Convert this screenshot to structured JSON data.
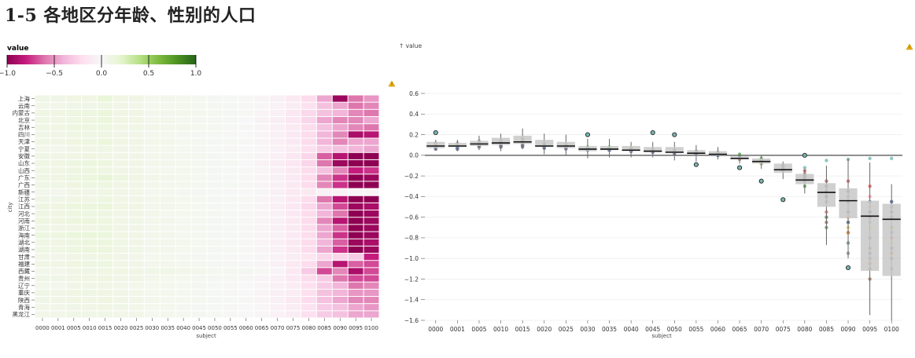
{
  "page": {
    "title": "1-5 各地区分年龄、性别的人口"
  },
  "legend": {
    "title": "value",
    "ticks": [
      "−1.0",
      "−0.5",
      "0.0",
      "0.5",
      "1.0"
    ],
    "colors": [
      "#8e0152",
      "#c51b7d",
      "#de77ae",
      "#f1b6da",
      "#fde0ef",
      "#f7f7f7",
      "#e6f5d0",
      "#b8e186",
      "#7fbc41",
      "#4d9221",
      "#276419"
    ]
  },
  "warning_icon": "warning-icon",
  "heatmap": {
    "xlabel": "subject",
    "ylabel": "city",
    "cities": [
      "上海",
      "云南",
      "内蒙古",
      "北京",
      "吉林",
      "四川",
      "天津",
      "宁夏",
      "安徽",
      "山东",
      "山西",
      "广东",
      "广西",
      "新疆",
      "江苏",
      "江西",
      "河北",
      "河南",
      "浙江",
      "海南",
      "湖北",
      "湖南",
      "甘肃",
      "福建",
      "西藏",
      "贵州",
      "辽宁",
      "重庆",
      "陕西",
      "青海",
      "黑龙江"
    ],
    "subjects": [
      "0000",
      "0001",
      "0005",
      "0010",
      "0015",
      "0020",
      "0025",
      "0030",
      "0035",
      "0040",
      "0045",
      "0050",
      "0055",
      "0060",
      "0065",
      "0070",
      "0075",
      "0080",
      "0085",
      "0090",
      "0095",
      "0100"
    ]
  },
  "box": {
    "ylabel": "↑ value",
    "xlabel": "subject",
    "yticks": [
      "0.6",
      "0.4",
      "0.2",
      "0.0",
      "−0.2",
      "−0.4",
      "−0.6",
      "−0.8",
      "−1.0",
      "−1.2",
      "−1.4",
      "−1.6"
    ],
    "xticks": [
      "0000",
      "0001",
      "0005",
      "0010",
      "0015",
      "0020",
      "0025",
      "0030",
      "0035",
      "0040",
      "0045",
      "0050",
      "0055",
      "0060",
      "0065",
      "0070",
      "0075",
      "0080",
      "0085",
      "0090",
      "0095",
      "0100"
    ]
  },
  "chart_data": [
    {
      "type": "heatmap",
      "xlabel": "subject",
      "ylabel": "city",
      "color_domain": [
        -1,
        1
      ],
      "x": [
        "0000",
        "0001",
        "0005",
        "0010",
        "0015",
        "0020",
        "0025",
        "0030",
        "0035",
        "0040",
        "0045",
        "0050",
        "0055",
        "0060",
        "0065",
        "0070",
        "0075",
        "0080",
        "0085",
        "0090",
        "0095",
        "0100"
      ],
      "y": [
        "上海",
        "云南",
        "内蒙古",
        "北京",
        "吉林",
        "四川",
        "天津",
        "宁夏",
        "安徽",
        "山东",
        "山西",
        "广东",
        "广西",
        "新疆",
        "江苏",
        "江西",
        "河北",
        "河南",
        "浙江",
        "海南",
        "湖北",
        "湖南",
        "甘肃",
        "福建",
        "西藏",
        "贵州",
        "辽宁",
        "重庆",
        "陕西",
        "青海",
        "黑龙江"
      ],
      "values": [
        [
          0.08,
          0.08,
          0.1,
          0.1,
          0.15,
          0.1,
          0.09,
          0.05,
          0.06,
          0.05,
          0.04,
          0.03,
          0.02,
          0.01,
          -0.03,
          -0.06,
          -0.12,
          -0.22,
          -0.45,
          -0.95,
          -0.6,
          -0.5
        ],
        [
          0.07,
          0.07,
          0.08,
          0.08,
          0.1,
          0.08,
          0.07,
          0.05,
          0.05,
          0.05,
          0.04,
          0.03,
          0.02,
          0.01,
          -0.02,
          -0.05,
          -0.1,
          -0.18,
          -0.35,
          -0.45,
          -0.6,
          -0.55
        ],
        [
          0.1,
          0.1,
          0.12,
          0.12,
          0.14,
          0.1,
          0.09,
          0.06,
          0.06,
          0.06,
          0.05,
          0.04,
          0.03,
          0.01,
          -0.03,
          -0.06,
          -0.14,
          -0.24,
          -0.35,
          -0.4,
          -0.55,
          -0.6
        ],
        [
          0.09,
          0.09,
          0.1,
          0.11,
          0.14,
          0.1,
          0.09,
          0.06,
          0.06,
          0.05,
          0.04,
          0.03,
          0.02,
          0.0,
          -0.04,
          -0.08,
          -0.15,
          -0.25,
          -0.45,
          -0.55,
          -0.55,
          -0.45
        ],
        [
          0.1,
          0.1,
          0.12,
          0.12,
          0.12,
          0.09,
          0.09,
          0.07,
          0.06,
          0.06,
          0.05,
          0.04,
          0.02,
          0.01,
          -0.03,
          -0.07,
          -0.12,
          -0.22,
          -0.35,
          -0.45,
          -0.55,
          -0.6
        ],
        [
          0.08,
          0.08,
          0.1,
          0.1,
          0.1,
          0.08,
          0.07,
          0.05,
          0.05,
          0.04,
          0.03,
          0.02,
          0.01,
          0.0,
          -0.03,
          -0.06,
          -0.12,
          -0.22,
          -0.4,
          -0.55,
          -0.9,
          -0.85
        ],
        [
          0.09,
          0.09,
          0.11,
          0.11,
          0.14,
          0.1,
          0.09,
          0.06,
          0.06,
          0.05,
          0.04,
          0.03,
          0.02,
          0.01,
          -0.03,
          -0.07,
          -0.12,
          -0.22,
          -0.4,
          -0.55,
          -0.45,
          -0.45
        ],
        [
          0.06,
          0.06,
          0.08,
          0.08,
          0.1,
          0.08,
          0.07,
          0.05,
          0.05,
          0.04,
          0.03,
          0.02,
          0.01,
          0.0,
          -0.02,
          -0.05,
          -0.1,
          -0.2,
          -0.3,
          -0.35,
          -0.4,
          -0.45
        ],
        [
          0.09,
          0.09,
          0.1,
          0.11,
          0.1,
          0.08,
          0.08,
          0.06,
          0.06,
          0.05,
          0.04,
          0.03,
          0.02,
          0.01,
          -0.03,
          -0.07,
          -0.14,
          -0.25,
          -0.65,
          -0.85,
          -1.2,
          -1.1
        ],
        [
          0.1,
          0.1,
          0.12,
          0.13,
          0.12,
          0.09,
          0.08,
          0.06,
          0.06,
          0.05,
          0.04,
          0.03,
          0.02,
          0.0,
          -0.04,
          -0.08,
          -0.15,
          -0.25,
          -0.6,
          -0.95,
          -1.1,
          -1.0
        ],
        [
          0.1,
          0.1,
          0.11,
          0.12,
          0.11,
          0.08,
          0.08,
          0.05,
          0.05,
          0.05,
          0.04,
          0.03,
          0.02,
          0.01,
          -0.03,
          -0.06,
          -0.12,
          -0.22,
          -0.35,
          -0.55,
          -0.8,
          -0.75
        ],
        [
          0.1,
          0.1,
          0.12,
          0.13,
          0.16,
          0.12,
          0.1,
          0.07,
          0.06,
          0.05,
          0.04,
          0.03,
          0.02,
          0.01,
          -0.03,
          -0.06,
          -0.12,
          -0.22,
          -0.55,
          -0.75,
          -1.05,
          -0.95
        ],
        [
          0.09,
          0.09,
          0.11,
          0.12,
          0.12,
          0.09,
          0.08,
          0.06,
          0.05,
          0.05,
          0.04,
          0.03,
          0.02,
          0.01,
          -0.03,
          -0.06,
          -0.12,
          -0.22,
          -0.55,
          -0.75,
          -1.1,
          -1.0
        ],
        [
          0.06,
          0.06,
          0.08,
          0.08,
          0.1,
          0.08,
          0.07,
          0.05,
          0.05,
          0.04,
          0.03,
          0.02,
          0.01,
          0.0,
          -0.02,
          -0.06,
          -0.12,
          -0.12,
          -0.05,
          -0.04,
          -0.03,
          -0.03
        ],
        [
          0.08,
          0.08,
          0.1,
          0.1,
          0.12,
          0.09,
          0.08,
          0.06,
          0.06,
          0.05,
          0.04,
          0.03,
          0.02,
          0.01,
          -0.03,
          -0.06,
          -0.12,
          -0.22,
          -0.6,
          -0.85,
          -1.1,
          -1.0
        ],
        [
          0.11,
          0.11,
          0.13,
          0.14,
          0.14,
          0.1,
          0.09,
          0.06,
          0.06,
          0.05,
          0.04,
          0.03,
          0.02,
          0.01,
          -0.03,
          -0.07,
          -0.13,
          -0.24,
          -0.45,
          -0.7,
          -0.95,
          -0.9
        ],
        [
          0.1,
          0.1,
          0.11,
          0.12,
          0.11,
          0.08,
          0.08,
          0.06,
          0.05,
          0.05,
          0.04,
          0.03,
          0.02,
          0.01,
          -0.03,
          -0.06,
          -0.12,
          -0.22,
          -0.4,
          -0.6,
          -1.0,
          -0.95
        ],
        [
          0.11,
          0.11,
          0.13,
          0.13,
          0.12,
          0.09,
          0.08,
          0.06,
          0.06,
          0.05,
          0.04,
          0.03,
          0.02,
          0.01,
          -0.03,
          -0.06,
          -0.12,
          -0.22,
          -0.55,
          -0.85,
          -1.05,
          -0.95
        ],
        [
          0.08,
          0.08,
          0.09,
          0.1,
          0.12,
          0.09,
          0.08,
          0.06,
          0.05,
          0.05,
          0.04,
          0.03,
          0.02,
          0.01,
          -0.03,
          -0.06,
          -0.12,
          -0.22,
          -0.45,
          -0.65,
          -1.0,
          -0.95
        ],
        [
          0.12,
          0.12,
          0.14,
          0.15,
          0.14,
          0.1,
          0.09,
          0.06,
          0.06,
          0.05,
          0.04,
          0.03,
          0.02,
          0.01,
          -0.03,
          -0.06,
          -0.12,
          -0.22,
          -0.45,
          -0.75,
          -1.0,
          -0.95
        ],
        [
          0.1,
          0.1,
          0.12,
          0.13,
          0.13,
          0.09,
          0.08,
          0.06,
          0.06,
          0.05,
          0.04,
          0.03,
          0.02,
          0.01,
          -0.03,
          -0.06,
          -0.12,
          -0.22,
          -0.4,
          -0.65,
          -0.95,
          -0.9
        ],
        [
          0.1,
          0.1,
          0.12,
          0.13,
          0.13,
          0.09,
          0.08,
          0.06,
          0.06,
          0.05,
          0.04,
          0.03,
          0.02,
          0.01,
          -0.03,
          -0.06,
          -0.12,
          -0.22,
          -0.45,
          -0.75,
          -1.05,
          -0.95
        ],
        [
          0.07,
          0.07,
          0.09,
          0.09,
          0.1,
          0.08,
          0.07,
          0.05,
          0.05,
          0.04,
          0.03,
          0.02,
          0.01,
          0.0,
          -0.02,
          -0.05,
          -0.1,
          -0.15,
          -0.25,
          -0.25,
          -0.3,
          -0.8
        ],
        [
          0.09,
          0.09,
          0.11,
          0.11,
          0.12,
          0.09,
          0.08,
          0.06,
          0.06,
          0.05,
          0.04,
          0.03,
          0.02,
          0.01,
          -0.03,
          -0.06,
          -0.12,
          -0.22,
          -0.45,
          -0.85,
          -0.65,
          -0.7
        ],
        [
          0.06,
          0.06,
          0.08,
          0.09,
          0.1,
          0.1,
          0.09,
          0.08,
          0.08,
          0.07,
          0.06,
          0.05,
          0.04,
          0.03,
          0.01,
          -0.03,
          -0.12,
          -0.3,
          -0.7,
          -0.55,
          -0.9,
          -0.7
        ],
        [
          0.08,
          0.08,
          0.1,
          0.1,
          0.11,
          0.08,
          0.08,
          0.06,
          0.05,
          0.05,
          0.04,
          0.03,
          0.02,
          0.01,
          -0.03,
          -0.06,
          -0.12,
          -0.22,
          -0.3,
          -0.6,
          -0.7,
          -0.7
        ],
        [
          0.06,
          0.06,
          0.08,
          0.08,
          0.08,
          0.07,
          0.06,
          0.05,
          0.05,
          0.04,
          0.03,
          0.02,
          0.01,
          0.0,
          -0.03,
          -0.06,
          -0.1,
          -0.2,
          -0.3,
          -0.4,
          -0.6,
          -0.55
        ],
        [
          0.08,
          0.08,
          0.1,
          0.1,
          0.1,
          0.08,
          0.07,
          0.05,
          0.05,
          0.04,
          0.03,
          0.02,
          0.01,
          0.0,
          -0.03,
          -0.06,
          -0.1,
          -0.2,
          -0.35,
          -0.4,
          -0.5,
          -0.5
        ],
        [
          0.08,
          0.08,
          0.1,
          0.1,
          0.11,
          0.08,
          0.08,
          0.06,
          0.05,
          0.05,
          0.04,
          0.03,
          0.02,
          0.01,
          -0.03,
          -0.06,
          -0.12,
          -0.22,
          -0.35,
          -0.45,
          -0.55,
          -0.55
        ],
        [
          0.07,
          0.07,
          0.08,
          0.09,
          0.1,
          0.08,
          0.07,
          0.05,
          0.05,
          0.04,
          0.03,
          0.02,
          0.01,
          0.0,
          -0.02,
          -0.05,
          -0.1,
          -0.18,
          -0.3,
          -0.35,
          -0.45,
          -0.5
        ],
        [
          0.07,
          0.07,
          0.09,
          0.09,
          0.09,
          0.07,
          0.07,
          0.05,
          0.05,
          0.04,
          0.03,
          0.02,
          0.01,
          0.0,
          -0.02,
          -0.05,
          -0.1,
          -0.2,
          -0.3,
          -0.35,
          -0.45,
          -0.45
        ]
      ]
    },
    {
      "type": "box",
      "xlabel": "subject",
      "ylabel": "value",
      "ylim": [
        -1.6,
        0.6
      ],
      "categories": [
        "0000",
        "0001",
        "0005",
        "0010",
        "0015",
        "0020",
        "0025",
        "0030",
        "0035",
        "0040",
        "0045",
        "0050",
        "0055",
        "0060",
        "0065",
        "0070",
        "0075",
        "0080",
        "0085",
        "0090",
        "0095",
        "0100"
      ],
      "q1": [
        0.07,
        0.08,
        0.09,
        0.1,
        0.11,
        0.08,
        0.07,
        0.04,
        0.05,
        0.04,
        0.03,
        0.02,
        0.01,
        0.0,
        -0.04,
        -0.08,
        -0.17,
        -0.28,
        -0.5,
        -0.61,
        -1.12,
        -1.17
      ],
      "median": [
        0.09,
        0.09,
        0.11,
        0.12,
        0.13,
        0.09,
        0.09,
        0.06,
        0.06,
        0.05,
        0.04,
        0.03,
        0.02,
        0.01,
        -0.03,
        -0.06,
        -0.14,
        -0.24,
        -0.36,
        -0.44,
        -0.59,
        -0.62
      ],
      "q3": [
        0.13,
        0.12,
        0.14,
        0.17,
        0.19,
        0.15,
        0.13,
        0.09,
        0.09,
        0.09,
        0.08,
        0.08,
        0.05,
        0.04,
        -0.01,
        -0.03,
        -0.08,
        -0.18,
        -0.27,
        -0.32,
        -0.44,
        -0.47
      ],
      "whisker_low": [
        0.05,
        0.04,
        0.05,
        0.04,
        0.06,
        0.01,
        0.0,
        -0.03,
        -0.02,
        -0.02,
        -0.02,
        -0.05,
        -0.06,
        -0.04,
        -0.08,
        -0.13,
        -0.23,
        -0.37,
        -0.87,
        -1.0,
        -1.55,
        -1.6
      ],
      "whisker_high": [
        0.15,
        0.15,
        0.19,
        0.21,
        0.26,
        0.21,
        0.2,
        0.16,
        0.16,
        0.13,
        0.13,
        0.13,
        0.1,
        0.08,
        0.01,
        0.0,
        -0.06,
        -0.14,
        -0.1,
        -0.03,
        -0.07,
        -0.28
      ],
      "outliers": [
        {
          "x": "0000",
          "y": 0.22
        },
        {
          "x": "0030",
          "y": 0.2
        },
        {
          "x": "0045",
          "y": 0.22
        },
        {
          "x": "0050",
          "y": 0.2
        },
        {
          "x": "0055",
          "y": -0.09
        },
        {
          "x": "0065",
          "y": -0.12
        },
        {
          "x": "0070",
          "y": -0.25
        },
        {
          "x": "0075",
          "y": -0.43
        },
        {
          "x": "0080",
          "y": 0.0
        },
        {
          "x": "0090",
          "y": -1.09
        }
      ]
    }
  ]
}
